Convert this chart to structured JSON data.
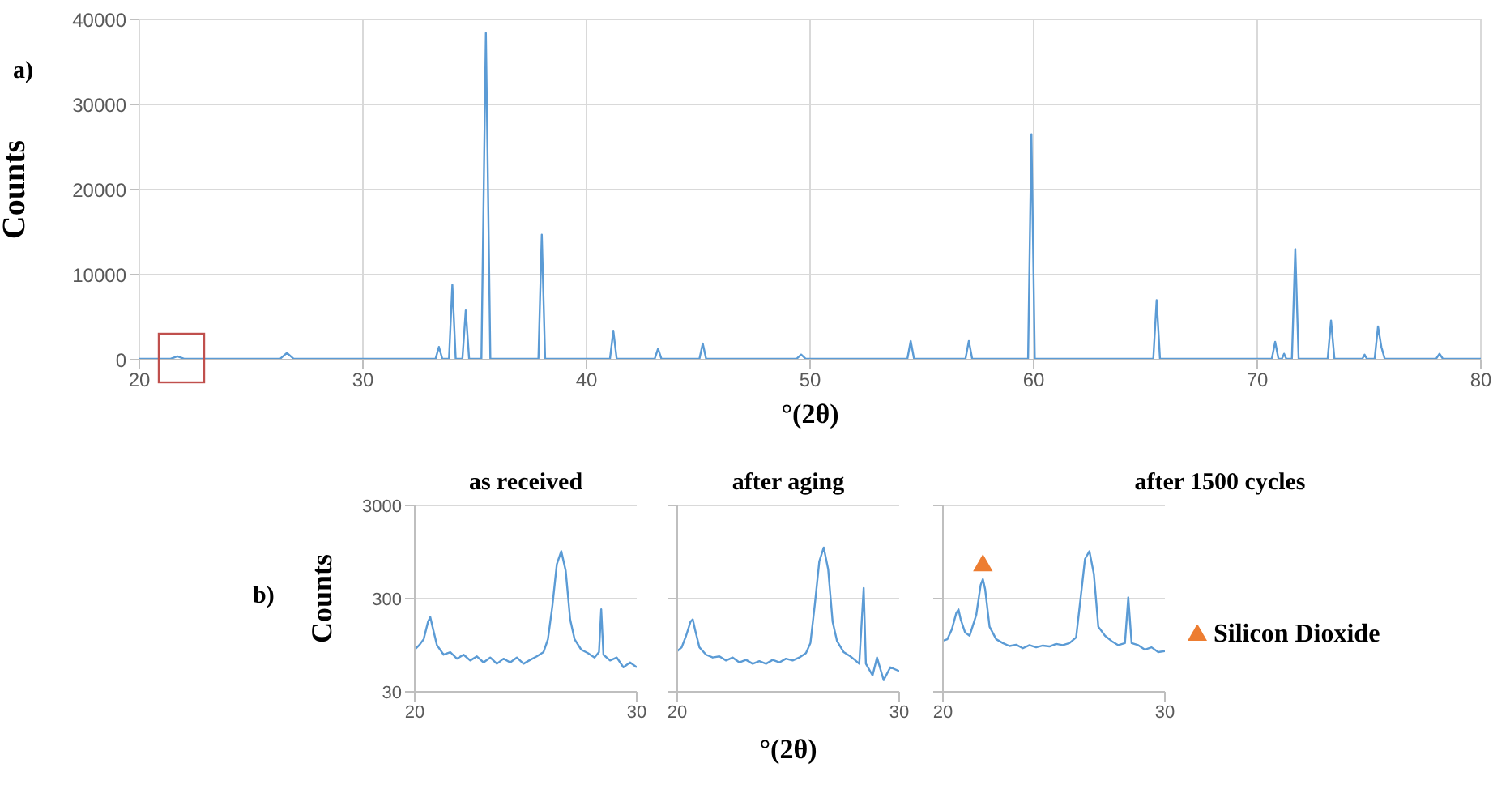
{
  "chart_data": [
    {
      "type": "line",
      "annotations": [
        "a)"
      ],
      "xlabel": "°(2θ)",
      "ylabel": "Counts",
      "xlim": [
        20,
        80
      ],
      "xticks": [
        20,
        30,
        40,
        50,
        60,
        70,
        80
      ],
      "ylim": [
        0,
        40000
      ],
      "yticks": [
        0,
        10000,
        20000,
        30000,
        40000
      ],
      "grid": true,
      "marker": "none",
      "series": [
        {
          "color": "#5b9bd5",
          "x": [
            20,
            21.4,
            21.7,
            22.0,
            26.3,
            26.6,
            26.9,
            33.25,
            33.4,
            33.55,
            33.85,
            34.0,
            34.15,
            34.45,
            34.6,
            34.75,
            35.3,
            35.5,
            35.7,
            37.85,
            38.0,
            38.15,
            41.05,
            41.2,
            41.35,
            43.05,
            43.2,
            43.35,
            45.05,
            45.2,
            45.35,
            49.4,
            49.6,
            49.8,
            54.35,
            54.5,
            54.65,
            56.95,
            57.1,
            57.25,
            59.75,
            59.9,
            60.05,
            65.35,
            65.5,
            65.65,
            70.65,
            70.8,
            70.95,
            71.1,
            71.2,
            71.3,
            71.55,
            71.7,
            71.85,
            73.15,
            73.3,
            73.45,
            74.7,
            74.8,
            74.9,
            75.25,
            75.4,
            75.55,
            75.7,
            78.0,
            78.15,
            78.3,
            80
          ],
          "values": [
            100,
            100,
            400,
            100,
            100,
            800,
            100,
            100,
            1500,
            100,
            100,
            8800,
            100,
            100,
            5800,
            100,
            100,
            38400,
            100,
            100,
            14700,
            100,
            100,
            3400,
            100,
            100,
            1300,
            100,
            100,
            1900,
            100,
            100,
            600,
            100,
            100,
            2200,
            100,
            100,
            2200,
            100,
            100,
            26500,
            100,
            100,
            7000,
            100,
            100,
            2100,
            100,
            100,
            700,
            100,
            100,
            13000,
            100,
            100,
            4600,
            100,
            100,
            600,
            100,
            100,
            3900,
            1500,
            100,
            100,
            700,
            100,
            100
          ]
        }
      ]
    },
    {
      "type": "line",
      "title": "as received",
      "annotations": [
        "b)"
      ],
      "ylabel": "Counts",
      "xlim": [
        20,
        30
      ],
      "xticks": [
        20,
        30
      ],
      "ylim": [
        30,
        3000
      ],
      "yticks": [
        30,
        300,
        3000
      ],
      "log": "y",
      "grid": "y",
      "marker": "none",
      "series": [
        {
          "color": "#5b9bd5",
          "x": [
            20,
            20.2,
            20.4,
            20.6,
            20.7,
            20.8,
            21.0,
            21.3,
            21.6,
            21.9,
            22.2,
            22.5,
            22.8,
            23.1,
            23.4,
            23.7,
            24.0,
            24.3,
            24.6,
            24.9,
            25.2,
            25.5,
            25.8,
            26.0,
            26.2,
            26.4,
            26.6,
            26.8,
            27.0,
            27.2,
            27.5,
            27.8,
            28.1,
            28.3,
            28.4,
            28.5,
            28.8,
            29.1,
            29.4,
            29.7,
            30
          ],
          "values": [
            85,
            95,
            110,
            170,
            190,
            150,
            95,
            75,
            80,
            68,
            75,
            65,
            72,
            62,
            70,
            60,
            68,
            62,
            70,
            60,
            66,
            72,
            80,
            110,
            250,
            700,
            970,
            600,
            180,
            110,
            85,
            78,
            70,
            80,
            230,
            75,
            65,
            70,
            55,
            62,
            55
          ]
        }
      ]
    },
    {
      "type": "line",
      "title": "after aging",
      "xlabel": "°(2θ)",
      "xlim": [
        20,
        30
      ],
      "xticks": [
        20,
        30
      ],
      "ylim": [
        30,
        3000
      ],
      "yticks": [
        30,
        300,
        3000
      ],
      "log": "y",
      "grid": "y",
      "marker": "none",
      "tick_labels": "x",
      "series": [
        {
          "color": "#5b9bd5",
          "x": [
            20,
            20.2,
            20.4,
            20.6,
            20.7,
            20.8,
            21.0,
            21.3,
            21.6,
            21.9,
            22.2,
            22.5,
            22.8,
            23.1,
            23.4,
            23.7,
            24.0,
            24.3,
            24.6,
            24.9,
            25.2,
            25.5,
            25.8,
            26.0,
            26.2,
            26.4,
            26.6,
            26.8,
            27.0,
            27.2,
            27.5,
            27.8,
            28.0,
            28.2,
            28.4,
            28.5,
            28.8,
            29.0,
            29.3,
            29.6,
            30
          ],
          "values": [
            82,
            90,
            120,
            170,
            180,
            140,
            90,
            75,
            70,
            72,
            65,
            70,
            62,
            66,
            60,
            64,
            60,
            66,
            62,
            68,
            65,
            70,
            78,
            100,
            260,
            750,
            1060,
            620,
            170,
            105,
            80,
            72,
            66,
            60,
            390,
            60,
            45,
            70,
            40,
            55,
            50
          ]
        }
      ]
    },
    {
      "type": "line",
      "title": "after 1500 cycles",
      "xlim": [
        20,
        30
      ],
      "xticks": [
        20,
        30
      ],
      "ylim": [
        30,
        3000
      ],
      "yticks": [
        30,
        300,
        3000
      ],
      "log": "y",
      "grid": "y",
      "legend": "right",
      "tick_labels": "x",
      "series": [
        {
          "color": "#5b9bd5",
          "marker": "none",
          "x": [
            20,
            20.2,
            20.4,
            20.6,
            20.7,
            20.8,
            21.0,
            21.2,
            21.5,
            21.7,
            21.8,
            21.9,
            22.1,
            22.4,
            22.7,
            23.0,
            23.3,
            23.6,
            23.9,
            24.2,
            24.5,
            24.8,
            25.1,
            25.4,
            25.7,
            26.0,
            26.2,
            26.4,
            26.6,
            26.8,
            27.0,
            27.3,
            27.6,
            27.9,
            28.2,
            28.35,
            28.5,
            28.8,
            29.1,
            29.4,
            29.7,
            30
          ],
          "values": [
            106,
            110,
            140,
            210,
            230,
            180,
            130,
            120,
            200,
            420,
            485,
            380,
            150,
            110,
            100,
            93,
            96,
            88,
            95,
            90,
            94,
            92,
            98,
            95,
            100,
            115,
            300,
            800,
            970,
            550,
            150,
            120,
            105,
            95,
            100,
            310,
            100,
            95,
            85,
            90,
            80,
            82
          ]
        },
        {
          "name": "Silicon Dioxide",
          "type": "scatter",
          "marker": "triangle",
          "color": "#ed7d31",
          "x": [
            21.8
          ],
          "values": [
            680
          ]
        }
      ]
    }
  ]
}
